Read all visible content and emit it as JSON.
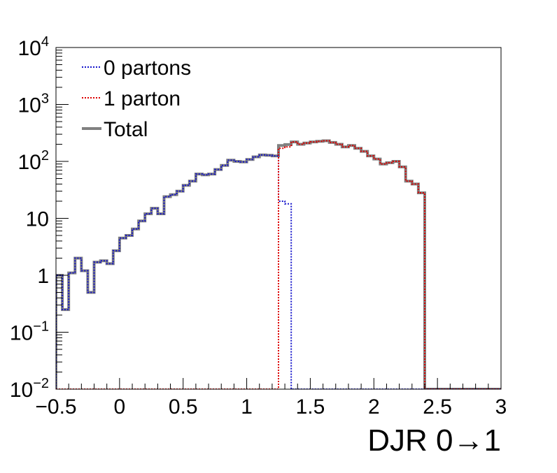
{
  "chart_data": {
    "type": "line",
    "style": "step-histogram",
    "xlabel": "DJR 0→1",
    "ylabel": "",
    "xlim": [
      -0.5,
      3.0
    ],
    "ylim": [
      0.01,
      10000
    ],
    "yscale": "log",
    "grid": false,
    "legend_position": "top-left",
    "x_tick_labels": [
      "−0.5",
      "0",
      "0.5",
      "1",
      "1.5",
      "2",
      "2.5",
      "3"
    ],
    "x_tick_values": [
      -0.5,
      0,
      0.5,
      1,
      1.5,
      2,
      2.5,
      3
    ],
    "y_ticks": [
      {
        "value": 10000,
        "base": "10",
        "exp": "4"
      },
      {
        "value": 1000,
        "base": "10",
        "exp": "3"
      },
      {
        "value": 100,
        "base": "10",
        "exp": "2"
      },
      {
        "value": 10,
        "base": "10",
        "exp": ""
      },
      {
        "value": 1,
        "base": "1",
        "exp": ""
      },
      {
        "value": 0.1,
        "base": "10",
        "exp": "−1"
      },
      {
        "value": 0.01,
        "base": "10",
        "exp": "−2"
      }
    ],
    "bin_edges": [
      -0.5,
      -0.45,
      -0.4,
      -0.35,
      -0.3,
      -0.25,
      -0.2,
      -0.15,
      -0.1,
      -0.05,
      0.0,
      0.05,
      0.1,
      0.15,
      0.2,
      0.25,
      0.3,
      0.35,
      0.4,
      0.45,
      0.5,
      0.55,
      0.6,
      0.65,
      0.7,
      0.75,
      0.8,
      0.85,
      0.9,
      0.95,
      1.0,
      1.05,
      1.1,
      1.15,
      1.2,
      1.25,
      1.3,
      1.35,
      1.4,
      1.45,
      1.5,
      1.55,
      1.6,
      1.65,
      1.7,
      1.75,
      1.8,
      1.85,
      1.9,
      1.95,
      2.0,
      2.05,
      2.1,
      2.15,
      2.2,
      2.25,
      2.3,
      2.35,
      2.4,
      2.45,
      2.5,
      2.55,
      2.6,
      2.65,
      2.7,
      2.75,
      2.8,
      2.85,
      2.9,
      2.95,
      3.0
    ],
    "series": [
      {
        "name": "0 partons",
        "color": "#1414cc",
        "dash": "dotted",
        "values": [
          1.0,
          0.25,
          1.1,
          2.0,
          1.2,
          0.5,
          1.7,
          1.8,
          1.6,
          2.7,
          4.5,
          5.0,
          6.5,
          9.0,
          12.0,
          15.0,
          12.0,
          24.0,
          26.0,
          30.0,
          38.0,
          45.0,
          60.0,
          58.0,
          60.0,
          72.0,
          85.0,
          105.0,
          100.0,
          98.0,
          108.0,
          120.0,
          130.0,
          128.0,
          125.0,
          20.0,
          18.0,
          0.01,
          0.01,
          0.01,
          0.01,
          0.01,
          0.01,
          0.01,
          0.01,
          0.01,
          0.01,
          0.01,
          0.01,
          0.01,
          0.01,
          0.01,
          0.01,
          0.01,
          0.01,
          0.01,
          0.01,
          0.01,
          0.01,
          0.01,
          0.01,
          0.01,
          0.01,
          0.01,
          0.01,
          0.01,
          0.01,
          0.01,
          0.01,
          0.01
        ]
      },
      {
        "name": "1 parton",
        "color": "#dd0000",
        "dash": "dotted",
        "values": [
          0.01,
          0.01,
          0.01,
          0.01,
          0.01,
          0.01,
          0.01,
          0.01,
          0.01,
          0.01,
          0.01,
          0.01,
          0.01,
          0.01,
          0.01,
          0.01,
          0.01,
          0.01,
          0.01,
          0.01,
          0.01,
          0.01,
          0.01,
          0.01,
          0.01,
          0.01,
          0.01,
          0.01,
          0.01,
          0.01,
          0.01,
          0.01,
          0.01,
          0.01,
          0.01,
          170.0,
          180.0,
          220.0,
          200.0,
          210.0,
          220.0,
          225.0,
          230.0,
          215.0,
          200.0,
          180.0,
          190.0,
          170.0,
          150.0,
          125.0,
          110.0,
          90.0,
          95.0,
          100.0,
          80.0,
          45.0,
          40.0,
          28.0,
          0.01,
          0.01,
          0.01,
          0.01,
          0.01,
          0.01,
          0.01,
          0.01,
          0.01,
          0.01,
          0.01,
          0.01
        ]
      },
      {
        "name": "Total",
        "color": "#808080",
        "dash": "solid",
        "values": [
          1.0,
          0.25,
          1.1,
          2.0,
          1.2,
          0.5,
          1.7,
          1.8,
          1.6,
          2.7,
          4.5,
          5.0,
          6.5,
          9.0,
          12.0,
          15.0,
          12.0,
          24.0,
          26.0,
          30.0,
          38.0,
          45.0,
          60.0,
          58.0,
          60.0,
          72.0,
          85.0,
          105.0,
          100.0,
          98.0,
          108.0,
          120.0,
          130.0,
          128.0,
          125.0,
          190.0,
          198.0,
          220.0,
          200.0,
          210.0,
          220.0,
          225.0,
          230.0,
          215.0,
          200.0,
          180.0,
          190.0,
          170.0,
          150.0,
          125.0,
          110.0,
          90.0,
          95.0,
          100.0,
          80.0,
          45.0,
          40.0,
          28.0,
          0.01,
          0.01,
          0.01,
          0.01,
          0.01,
          0.01,
          0.01,
          0.01,
          0.01,
          0.01,
          0.01,
          0.01
        ]
      }
    ]
  }
}
